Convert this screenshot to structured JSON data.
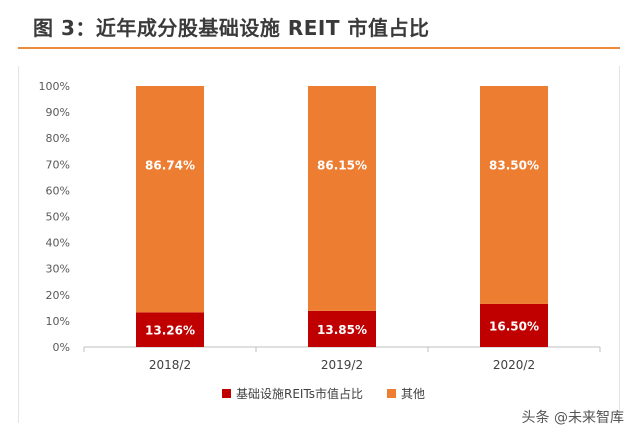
{
  "header": {
    "title": "图 3：近年成分股基础设施 REIT 市值占比"
  },
  "watermark": {
    "text": "头条 @未来智库"
  },
  "colors": {
    "reits": "#c00000",
    "other": "#ed7d31",
    "rule": "#ec8b3a"
  },
  "chart_data": {
    "type": "bar",
    "stacked": true,
    "percent_scale": true,
    "categories": [
      "2018/2",
      "2019/2",
      "2020/2"
    ],
    "series": [
      {
        "name": "基础设施REITs市值占比",
        "values": [
          13.26,
          13.85,
          16.5
        ],
        "labels": [
          "13.26%",
          "13.85%",
          "16.50%"
        ],
        "color": "#c00000"
      },
      {
        "name": "其他",
        "values": [
          86.74,
          86.15,
          83.5
        ],
        "labels": [
          "86.74%",
          "86.15%",
          "83.50%"
        ],
        "color": "#ed7d31"
      }
    ],
    "yticks": [
      "0%",
      "10%",
      "20%",
      "30%",
      "40%",
      "50%",
      "60%",
      "70%",
      "80%",
      "90%",
      "100%"
    ],
    "ylim": [
      0,
      100
    ],
    "grid": false,
    "legend_position": "bottom"
  }
}
